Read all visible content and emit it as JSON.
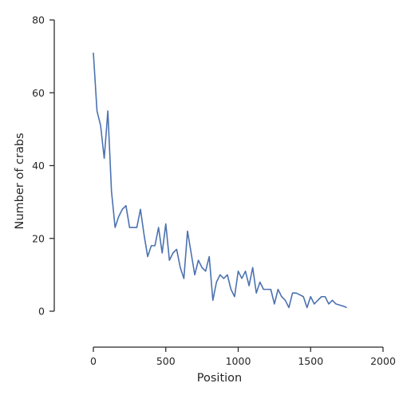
{
  "chart_data": {
    "type": "line",
    "xlabel": "Position",
    "ylabel": "Number of crabs",
    "xlim": [
      -100,
      2000
    ],
    "ylim": [
      -10,
      80
    ],
    "xticks": [
      0,
      500,
      1000,
      1500,
      2000
    ],
    "yticks": [
      0,
      20,
      40,
      60,
      80
    ],
    "grid": false,
    "series": [
      {
        "color": "#4c72b0",
        "x": [
          0,
          25,
          50,
          75,
          100,
          125,
          150,
          175,
          200,
          225,
          250,
          275,
          300,
          325,
          350,
          375,
          400,
          425,
          450,
          475,
          500,
          525,
          550,
          575,
          600,
          625,
          650,
          675,
          700,
          725,
          750,
          775,
          800,
          825,
          850,
          875,
          900,
          925,
          950,
          975,
          1000,
          1025,
          1050,
          1075,
          1100,
          1125,
          1150,
          1175,
          1200,
          1225,
          1250,
          1275,
          1300,
          1325,
          1350,
          1375,
          1400,
          1425,
          1450,
          1475,
          1500,
          1525,
          1550,
          1575,
          1600,
          1625,
          1650,
          1675,
          1700,
          1725,
          1750
        ],
        "y": [
          71,
          55,
          51,
          42,
          55,
          33,
          23,
          26,
          28,
          29,
          23,
          23,
          23,
          28,
          21,
          15,
          18,
          18,
          23,
          16,
          24,
          14,
          16,
          17,
          12,
          9,
          22,
          16,
          10,
          14,
          12,
          11,
          15,
          3,
          8,
          10,
          9,
          10,
          6,
          4,
          11,
          9,
          11,
          7,
          12,
          5,
          8,
          6,
          6,
          6,
          2,
          6,
          4,
          3,
          1,
          5,
          5,
          4.5,
          4,
          1,
          4,
          2,
          3,
          4,
          4,
          2,
          3,
          2,
          1.7,
          1.4,
          1
        ]
      }
    ]
  }
}
